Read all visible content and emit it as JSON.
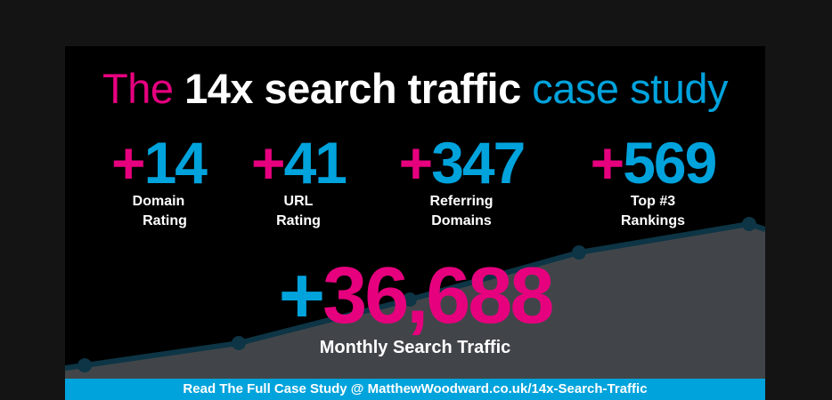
{
  "title": {
    "part1": "The",
    "part2": "14x search traffic",
    "part3": "case study"
  },
  "stats": [
    {
      "plus": "+",
      "value": "14",
      "label1": "Domain",
      "label2": "Rating"
    },
    {
      "plus": "+",
      "value": "41",
      "label1": "URL",
      "label2": "Rating"
    },
    {
      "plus": "+",
      "value": "347",
      "label1": "Referring",
      "label2": "Domains"
    },
    {
      "plus": "+",
      "value": "569",
      "label1": "Top #3",
      "label2": "Rankings"
    }
  ],
  "headline": {
    "plus": "+",
    "value": "36,688",
    "label": "Monthly Search Traffic"
  },
  "footer": {
    "text": "Read The Full Case Study @ MatthewWoodward.co.uk/14x-Search-Traffic"
  },
  "colors": {
    "pink": "#e6007e",
    "blue": "#00a3dc",
    "area": "#414549",
    "line": "#0d3545"
  }
}
